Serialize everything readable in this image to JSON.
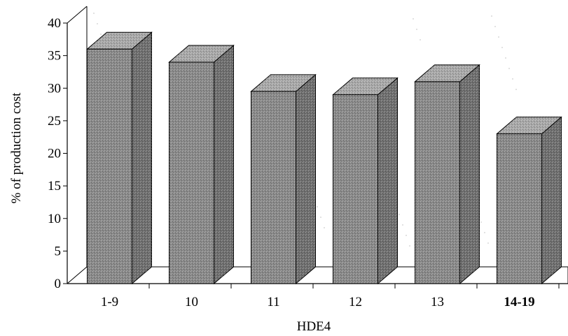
{
  "chart_data": {
    "type": "bar",
    "three_d": true,
    "categories": [
      "1-9",
      "10",
      "11",
      "12",
      "13",
      "14-19"
    ],
    "values": [
      36,
      34,
      29.5,
      29,
      31,
      23
    ],
    "xlabel": "HDE4",
    "ylabel": "% of production cost",
    "ylim": [
      0,
      40
    ],
    "yticks": [
      0,
      5,
      10,
      15,
      20,
      25,
      30,
      35,
      40
    ],
    "grid": false,
    "legend": "none",
    "colors": {
      "bar_front": "#8a8a8a",
      "bar_side": "#6f6f6f",
      "bar_top": "#a9a9a9",
      "outline": "#000000"
    }
  }
}
